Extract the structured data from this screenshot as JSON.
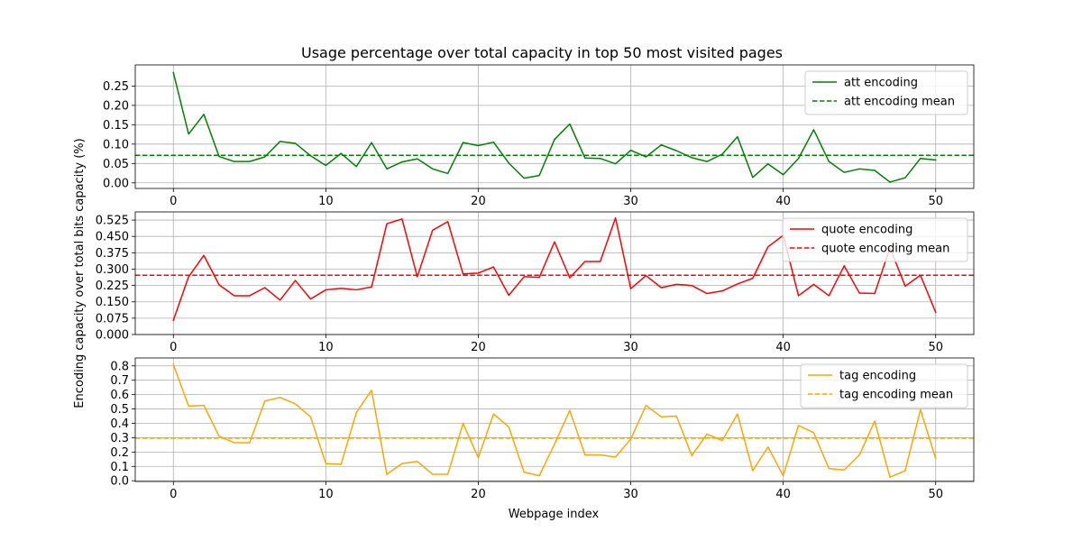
{
  "chart_data": {
    "type": "line",
    "title": "Usage percentage over total capacity in top 50 most visited pages",
    "xlabel": "Webpage index",
    "ylabel": "Encoding capacity over total bits capacity (%)",
    "grid": true,
    "x": [
      0,
      1,
      2,
      3,
      4,
      5,
      6,
      7,
      8,
      9,
      10,
      11,
      12,
      13,
      14,
      15,
      16,
      17,
      18,
      19,
      20,
      21,
      22,
      23,
      24,
      25,
      26,
      27,
      28,
      29,
      30,
      31,
      32,
      33,
      34,
      35,
      36,
      37,
      38,
      39,
      40,
      41,
      42,
      43,
      44,
      45,
      46,
      47,
      48,
      49,
      50
    ],
    "xlim": [
      -2.5,
      52.5
    ],
    "xticks": [
      0,
      10,
      20,
      30,
      40,
      50
    ],
    "xtick_labels": [
      "0",
      "10",
      "20",
      "30",
      "40",
      "50"
    ],
    "subplots": [
      {
        "legend_position": "upper right",
        "ylim": [
          -0.0145,
          0.3045
        ],
        "yticks": [
          0.0,
          0.05,
          0.1,
          0.15,
          0.2,
          0.25
        ],
        "ytick_labels": [
          "0.00",
          "0.05",
          "0.10",
          "0.15",
          "0.20",
          "0.25"
        ],
        "series": [
          {
            "name": "att encoding",
            "color": "#008000",
            "style": "solid",
            "values": [
              0.285,
              0.126,
              0.177,
              0.068,
              0.055,
              0.055,
              0.067,
              0.107,
              0.102,
              0.07,
              0.045,
              0.076,
              0.042,
              0.104,
              0.036,
              0.054,
              0.062,
              0.036,
              0.024,
              0.104,
              0.096,
              0.105,
              0.051,
              0.012,
              0.019,
              0.112,
              0.152,
              0.064,
              0.063,
              0.049,
              0.084,
              0.067,
              0.098,
              0.083,
              0.065,
              0.055,
              0.074,
              0.119,
              0.014,
              0.049,
              0.021,
              0.063,
              0.137,
              0.055,
              0.027,
              0.036,
              0.032,
              0.002,
              0.013,
              0.063,
              0.059
            ]
          },
          {
            "name": "att encoding mean",
            "color": "#008000",
            "style": "dashed",
            "values": [
              0.071
            ]
          }
        ]
      },
      {
        "legend_position": "upper right",
        "ylim": [
          0.0,
          0.5625
        ],
        "yticks": [
          0.0,
          0.075,
          0.15,
          0.225,
          0.3,
          0.375,
          0.45,
          0.525
        ],
        "ytick_labels": [
          "0.000",
          "0.075",
          "0.150",
          "0.225",
          "0.300",
          "0.375",
          "0.450",
          "0.525"
        ],
        "series": [
          {
            "name": "quote encoding",
            "color": "#ff0000",
            "style": "solid",
            "values": [
              0.065,
              0.265,
              0.363,
              0.228,
              0.178,
              0.178,
              0.215,
              0.158,
              0.248,
              0.163,
              0.205,
              0.212,
              0.205,
              0.218,
              0.508,
              0.53,
              0.265,
              0.478,
              0.518,
              0.278,
              0.282,
              0.31,
              0.18,
              0.265,
              0.262,
              0.425,
              0.26,
              0.335,
              0.335,
              0.535,
              0.21,
              0.27,
              0.215,
              0.23,
              0.225,
              0.188,
              0.2,
              0.232,
              0.258,
              0.402,
              0.455,
              0.178,
              0.23,
              0.178,
              0.315,
              0.19,
              0.188,
              0.398,
              0.222,
              0.272,
              0.102
            ]
          },
          {
            "name": "quote encoding mean",
            "color": "#ff0000",
            "style": "dashed",
            "values": [
              0.272
            ]
          }
        ]
      },
      {
        "legend_position": "upper right",
        "ylim": [
          -0.005,
          0.855
        ],
        "yticks": [
          0.0,
          0.1,
          0.2,
          0.3,
          0.4,
          0.5,
          0.6,
          0.7,
          0.8
        ],
        "ytick_labels": [
          "0.0",
          "0.1",
          "0.2",
          "0.3",
          "0.4",
          "0.5",
          "0.6",
          "0.7",
          "0.8"
        ],
        "series": [
          {
            "name": "tag encoding",
            "color": "#ffa500",
            "style": "solid",
            "values": [
              0.81,
              0.52,
              0.525,
              0.31,
              0.265,
              0.265,
              0.555,
              0.58,
              0.535,
              0.445,
              0.12,
              0.115,
              0.475,
              0.63,
              0.045,
              0.12,
              0.135,
              0.045,
              0.045,
              0.4,
              0.16,
              0.465,
              0.375,
              0.06,
              0.035,
              0.255,
              0.49,
              0.18,
              0.18,
              0.165,
              0.29,
              0.525,
              0.445,
              0.45,
              0.175,
              0.325,
              0.28,
              0.465,
              0.07,
              0.235,
              0.035,
              0.385,
              0.335,
              0.085,
              0.075,
              0.18,
              0.415,
              0.025,
              0.07,
              0.495,
              0.155
            ]
          },
          {
            "name": "tag encoding mean",
            "color": "#ffa500",
            "style": "dashed",
            "values": [
              0.296
            ]
          }
        ]
      }
    ]
  }
}
